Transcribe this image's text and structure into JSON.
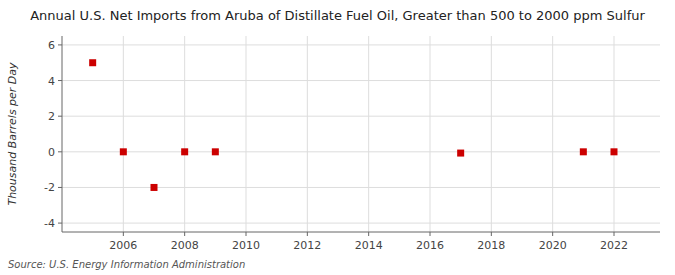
{
  "chart_data": {
    "type": "scatter",
    "title": "Annual U.S. Net Imports from Aruba of Distillate Fuel Oil, Greater than 500 to 2000 ppm Sulfur",
    "ylabel": "Thousand Barrels per Day",
    "source": "Source: U.S. Energy Information Administration",
    "x": [
      2005,
      2006,
      2007,
      2008,
      2009,
      2017,
      2021,
      2022
    ],
    "values": [
      5.0,
      0.0,
      -2.0,
      0.0,
      0.0,
      -0.07,
      0.0,
      0.0
    ],
    "color": "#cc0000",
    "marker": "square",
    "xlim": [
      2004.0,
      2023.5
    ],
    "ylim": [
      -4.5,
      6.5
    ],
    "xticks": [
      2006,
      2008,
      2010,
      2012,
      2014,
      2016,
      2018,
      2020,
      2022
    ],
    "yticks": [
      -4,
      -2,
      0,
      2,
      4,
      6
    ],
    "grid": true
  }
}
